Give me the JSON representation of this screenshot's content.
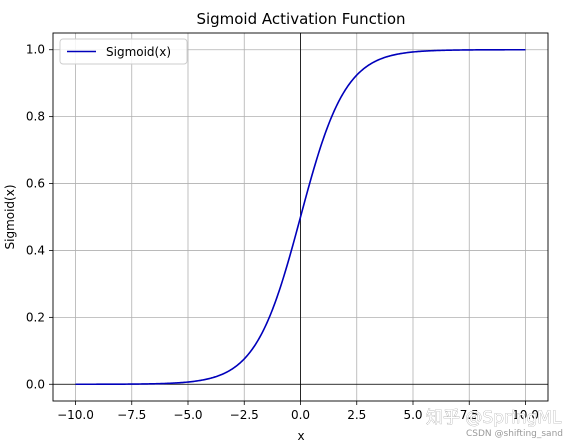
{
  "chart_data": {
    "type": "line",
    "title": "Sigmoid Activation Function",
    "xlabel": "x",
    "ylabel": "Sigmoid(x)",
    "xlim": [
      -11,
      11
    ],
    "ylim": [
      -0.05,
      1.05
    ],
    "x_ticks": [
      -10,
      -7.5,
      -5,
      -2.5,
      0,
      2.5,
      5,
      7.5,
      10
    ],
    "x_tick_labels": [
      "−10.0",
      "−7.5",
      "−5.0",
      "−2.5",
      "0.0",
      "2.5",
      "5.0",
      "7.5",
      "10.0"
    ],
    "y_ticks": [
      0,
      0.2,
      0.4,
      0.6,
      0.8,
      1.0
    ],
    "y_tick_labels": [
      "0.0",
      "0.2",
      "0.4",
      "0.6",
      "0.8",
      "1.0"
    ],
    "grid": true,
    "legend": "top-left",
    "reference_lines": {
      "x": 0,
      "y": 0
    },
    "series": [
      {
        "name": "Sigmoid(x)",
        "color": "#0000bb",
        "x": [
          -10,
          -9,
          -8,
          -7,
          -6,
          -5,
          -4.5,
          -4,
          -3.5,
          -3,
          -2.5,
          -2,
          -1.5,
          -1,
          -0.5,
          0,
          0.5,
          1,
          1.5,
          2,
          2.5,
          3,
          3.5,
          4,
          4.5,
          5,
          6,
          7,
          8,
          9,
          10
        ],
        "y": [
          0.0,
          0.0001,
          0.0003,
          0.0009,
          0.0025,
          0.0067,
          0.011,
          0.018,
          0.0293,
          0.0474,
          0.0759,
          0.1192,
          0.1824,
          0.2689,
          0.3775,
          0.5,
          0.6225,
          0.7311,
          0.8176,
          0.8808,
          0.9241,
          0.9526,
          0.9707,
          0.982,
          0.989,
          0.9933,
          0.9975,
          0.9991,
          0.9997,
          0.9999,
          1.0
        ]
      }
    ]
  },
  "watermark": {
    "main": "知乎 @SpringML",
    "sub": "CSDN @shifting_sand"
  }
}
